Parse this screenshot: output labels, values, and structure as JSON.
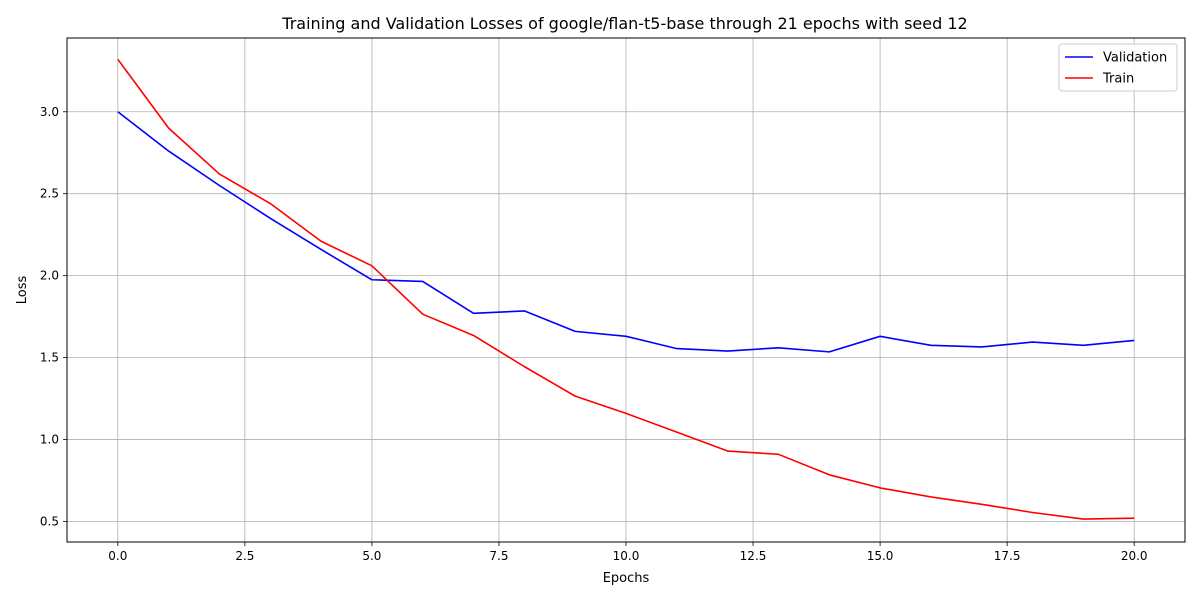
{
  "chart_data": {
    "type": "line",
    "title": "Training and Validation Losses of google/flan-t5-base through 21 epochs with seed 12",
    "xlabel": "Epochs",
    "ylabel": "Loss",
    "x": [
      0,
      1,
      2,
      3,
      4,
      5,
      6,
      7,
      8,
      9,
      10,
      11,
      12,
      13,
      14,
      15,
      16,
      17,
      18,
      19,
      20
    ],
    "xlim": [
      -1,
      21
    ],
    "ylim": [
      0.375,
      3.45
    ],
    "xticks": [
      0.0,
      2.5,
      5.0,
      7.5,
      10.0,
      12.5,
      15.0,
      17.5,
      20.0
    ],
    "xtick_labels": [
      "0.0",
      "2.5",
      "5.0",
      "7.5",
      "10.0",
      "12.5",
      "15.0",
      "17.5",
      "20.0"
    ],
    "yticks": [
      0.5,
      1.0,
      1.5,
      2.0,
      2.5,
      3.0
    ],
    "ytick_labels": [
      "0.5",
      "1.0",
      "1.5",
      "2.0",
      "2.5",
      "3.0"
    ],
    "grid": true,
    "legend_position": "top-right",
    "series": [
      {
        "name": "Validation",
        "color": "#0000ff",
        "values": [
          3.0,
          2.76,
          2.55,
          2.35,
          2.16,
          1.975,
          1.965,
          1.77,
          1.785,
          1.66,
          1.63,
          1.555,
          1.54,
          1.56,
          1.535,
          1.63,
          1.575,
          1.565,
          1.595,
          1.575,
          1.605
        ]
      },
      {
        "name": "Train",
        "color": "#ff0000",
        "values": [
          3.32,
          2.9,
          2.62,
          2.44,
          2.21,
          2.06,
          1.765,
          1.635,
          1.445,
          1.265,
          1.16,
          1.045,
          0.93,
          0.91,
          0.785,
          0.705,
          0.65,
          0.605,
          0.555,
          0.515,
          0.52
        ]
      }
    ]
  }
}
